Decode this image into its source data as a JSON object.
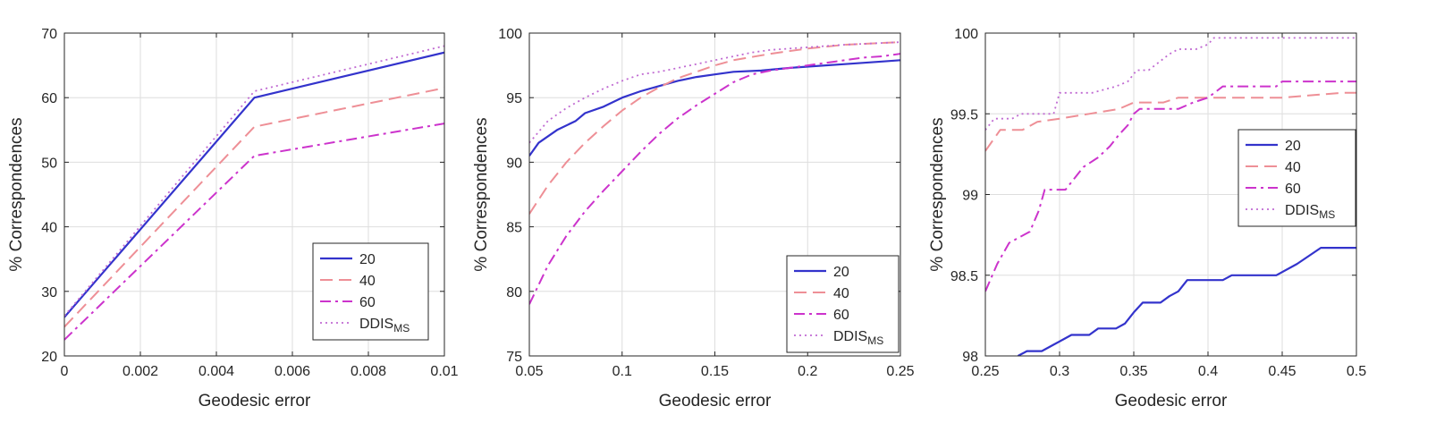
{
  "figure": {
    "background": "#ffffff"
  },
  "series_styles": {
    "20": {
      "color": "#3333cc",
      "dash": "none",
      "width": 2.2
    },
    "40": {
      "color": "#ee8f96",
      "dash": "14 7",
      "width": 2.0
    },
    "60": {
      "color": "#cc33cc",
      "dash": "12 5 3 5",
      "width": 2.0
    },
    "DDIS_MS": {
      "color": "#c06ad2",
      "dash": "2 4",
      "width": 1.8
    }
  },
  "chart_data": [
    {
      "type": "line",
      "xlabel": "Geodesic error",
      "ylabel": "% Correspondences",
      "xlim": [
        0,
        0.01
      ],
      "ylim": [
        20,
        70
      ],
      "xticks": [
        "0",
        "0.002",
        "0.004",
        "0.006",
        "0.008",
        "0.01"
      ],
      "xtick_values": [
        0,
        0.002,
        0.004,
        0.006,
        0.008,
        0.01
      ],
      "yticks": [
        "20",
        "30",
        "40",
        "50",
        "60",
        "70"
      ],
      "ytick_values": [
        20,
        30,
        40,
        50,
        60,
        70
      ],
      "grid": true,
      "legend_position": "bottom-right",
      "series": [
        {
          "name": "20",
          "style": "20",
          "x": [
            0,
            0.005,
            0.01
          ],
          "y": [
            26,
            60,
            67
          ]
        },
        {
          "name": "40",
          "style": "40",
          "x": [
            0,
            0.005,
            0.01
          ],
          "y": [
            24.5,
            55.5,
            61.5
          ]
        },
        {
          "name": "60",
          "style": "60",
          "x": [
            0,
            0.005,
            0.01
          ],
          "y": [
            22.5,
            51,
            56
          ]
        },
        {
          "name": "DDIS",
          "sub": "MS",
          "style": "DDIS_MS",
          "x": [
            0,
            0.005,
            0.01
          ],
          "y": [
            26.2,
            61,
            68
          ]
        }
      ]
    },
    {
      "type": "line",
      "xlabel": "Geodesic error",
      "ylabel": "% Correspondences",
      "xlim": [
        0.05,
        0.25
      ],
      "ylim": [
        75,
        100
      ],
      "xticks": [
        "0.05",
        "0.1",
        "0.15",
        "0.2",
        "0.25"
      ],
      "xtick_values": [
        0.05,
        0.1,
        0.15,
        0.2,
        0.25
      ],
      "yticks": [
        "75",
        "80",
        "85",
        "90",
        "95",
        "100"
      ],
      "ytick_values": [
        75,
        80,
        85,
        90,
        95,
        100
      ],
      "grid": true,
      "legend_position": "bottom-right",
      "series": [
        {
          "name": "20",
          "style": "20",
          "x": [
            0.05,
            0.055,
            0.065,
            0.075,
            0.08,
            0.09,
            0.1,
            0.11,
            0.12,
            0.13,
            0.14,
            0.15,
            0.16,
            0.175,
            0.19,
            0.2,
            0.22,
            0.24,
            0.25
          ],
          "y": [
            90.5,
            91.5,
            92.5,
            93.2,
            93.8,
            94.3,
            95.0,
            95.5,
            95.9,
            96.3,
            96.6,
            96.8,
            97.0,
            97.1,
            97.3,
            97.4,
            97.6,
            97.8,
            97.9
          ]
        },
        {
          "name": "40",
          "style": "40",
          "x": [
            0.05,
            0.06,
            0.07,
            0.08,
            0.09,
            0.1,
            0.11,
            0.12,
            0.13,
            0.14,
            0.15,
            0.16,
            0.18,
            0.2,
            0.22,
            0.25
          ],
          "y": [
            86,
            88.2,
            90,
            91.5,
            92.8,
            94,
            95,
            95.8,
            96.5,
            97,
            97.5,
            97.9,
            98.4,
            98.8,
            99.1,
            99.3
          ]
        },
        {
          "name": "60",
          "style": "60",
          "x": [
            0.05,
            0.06,
            0.07,
            0.08,
            0.09,
            0.1,
            0.11,
            0.12,
            0.13,
            0.14,
            0.15,
            0.16,
            0.17,
            0.18,
            0.19,
            0.2,
            0.21,
            0.22,
            0.23,
            0.24,
            0.25
          ],
          "y": [
            79,
            82,
            84.3,
            86.2,
            87.8,
            89.3,
            90.8,
            92.2,
            93.4,
            94.4,
            95.3,
            96.2,
            96.8,
            97.1,
            97.3,
            97.5,
            97.7,
            97.9,
            98.1,
            98.2,
            98.4
          ]
        },
        {
          "name": "DDIS",
          "sub": "MS",
          "style": "DDIS_MS",
          "x": [
            0.05,
            0.06,
            0.07,
            0.08,
            0.09,
            0.1,
            0.11,
            0.12,
            0.13,
            0.14,
            0.15,
            0.16,
            0.17,
            0.18,
            0.2,
            0.22,
            0.25
          ],
          "y": [
            91.5,
            93.2,
            94.2,
            95.0,
            95.7,
            96.3,
            96.8,
            97.0,
            97.3,
            97.6,
            97.9,
            98.2,
            98.5,
            98.7,
            98.9,
            99.1,
            99.3
          ]
        }
      ]
    },
    {
      "type": "line",
      "xlabel": "Geodesic error",
      "ylabel": "% Correspondences",
      "xlim": [
        0.25,
        0.5
      ],
      "ylim": [
        98,
        100
      ],
      "xticks": [
        "0.25",
        "0.3",
        "0.35",
        "0.4",
        "0.45",
        "0.5"
      ],
      "xtick_values": [
        0.25,
        0.3,
        0.35,
        0.4,
        0.45,
        0.5
      ],
      "yticks": [
        "98",
        "98.5",
        "99",
        "99.5",
        "100"
      ],
      "ytick_values": [
        98,
        98.5,
        99,
        99.5,
        100
      ],
      "grid": true,
      "legend_position": "top-right-inside",
      "series": [
        {
          "name": "20",
          "style": "20",
          "x": [
            0.272,
            0.278,
            0.288,
            0.296,
            0.302,
            0.308,
            0.32,
            0.326,
            0.338,
            0.344,
            0.35,
            0.356,
            0.368,
            0.374,
            0.38,
            0.386,
            0.41,
            0.416,
            0.446,
            0.46,
            0.476,
            0.5
          ],
          "y": [
            98.0,
            98.03,
            98.03,
            98.07,
            98.1,
            98.13,
            98.13,
            98.17,
            98.17,
            98.2,
            98.27,
            98.33,
            98.33,
            98.37,
            98.4,
            98.47,
            98.47,
            98.5,
            98.5,
            98.57,
            98.67,
            98.67
          ]
        },
        {
          "name": "40",
          "style": "40",
          "x": [
            0.25,
            0.26,
            0.275,
            0.285,
            0.3,
            0.32,
            0.34,
            0.35,
            0.37,
            0.38,
            0.4,
            0.45,
            0.49,
            0.5
          ],
          "y": [
            99.27,
            99.4,
            99.4,
            99.45,
            99.47,
            99.5,
            99.53,
            99.57,
            99.57,
            99.6,
            99.6,
            99.6,
            99.63,
            99.63
          ]
        },
        {
          "name": "60",
          "style": "60",
          "x": [
            0.25,
            0.258,
            0.266,
            0.272,
            0.28,
            0.286,
            0.29,
            0.304,
            0.31,
            0.316,
            0.326,
            0.334,
            0.34,
            0.346,
            0.35,
            0.354,
            0.38,
            0.39,
            0.4,
            0.41,
            0.446,
            0.45,
            0.5
          ],
          "y": [
            98.4,
            98.57,
            98.7,
            98.73,
            98.77,
            98.9,
            99.03,
            99.03,
            99.1,
            99.17,
            99.23,
            99.3,
            99.37,
            99.43,
            99.5,
            99.53,
            99.53,
            99.57,
            99.6,
            99.67,
            99.67,
            99.7,
            99.7
          ]
        },
        {
          "name": "DDIS",
          "sub": "MS",
          "style": "DDIS_MS",
          "x": [
            0.25,
            0.256,
            0.268,
            0.274,
            0.296,
            0.3,
            0.322,
            0.338,
            0.346,
            0.352,
            0.36,
            0.374,
            0.38,
            0.392,
            0.4,
            0.404,
            0.5
          ],
          "y": [
            99.4,
            99.47,
            99.47,
            99.5,
            99.5,
            99.63,
            99.63,
            99.67,
            99.7,
            99.77,
            99.77,
            99.87,
            99.9,
            99.9,
            99.93,
            99.97,
            99.97
          ]
        }
      ]
    }
  ]
}
